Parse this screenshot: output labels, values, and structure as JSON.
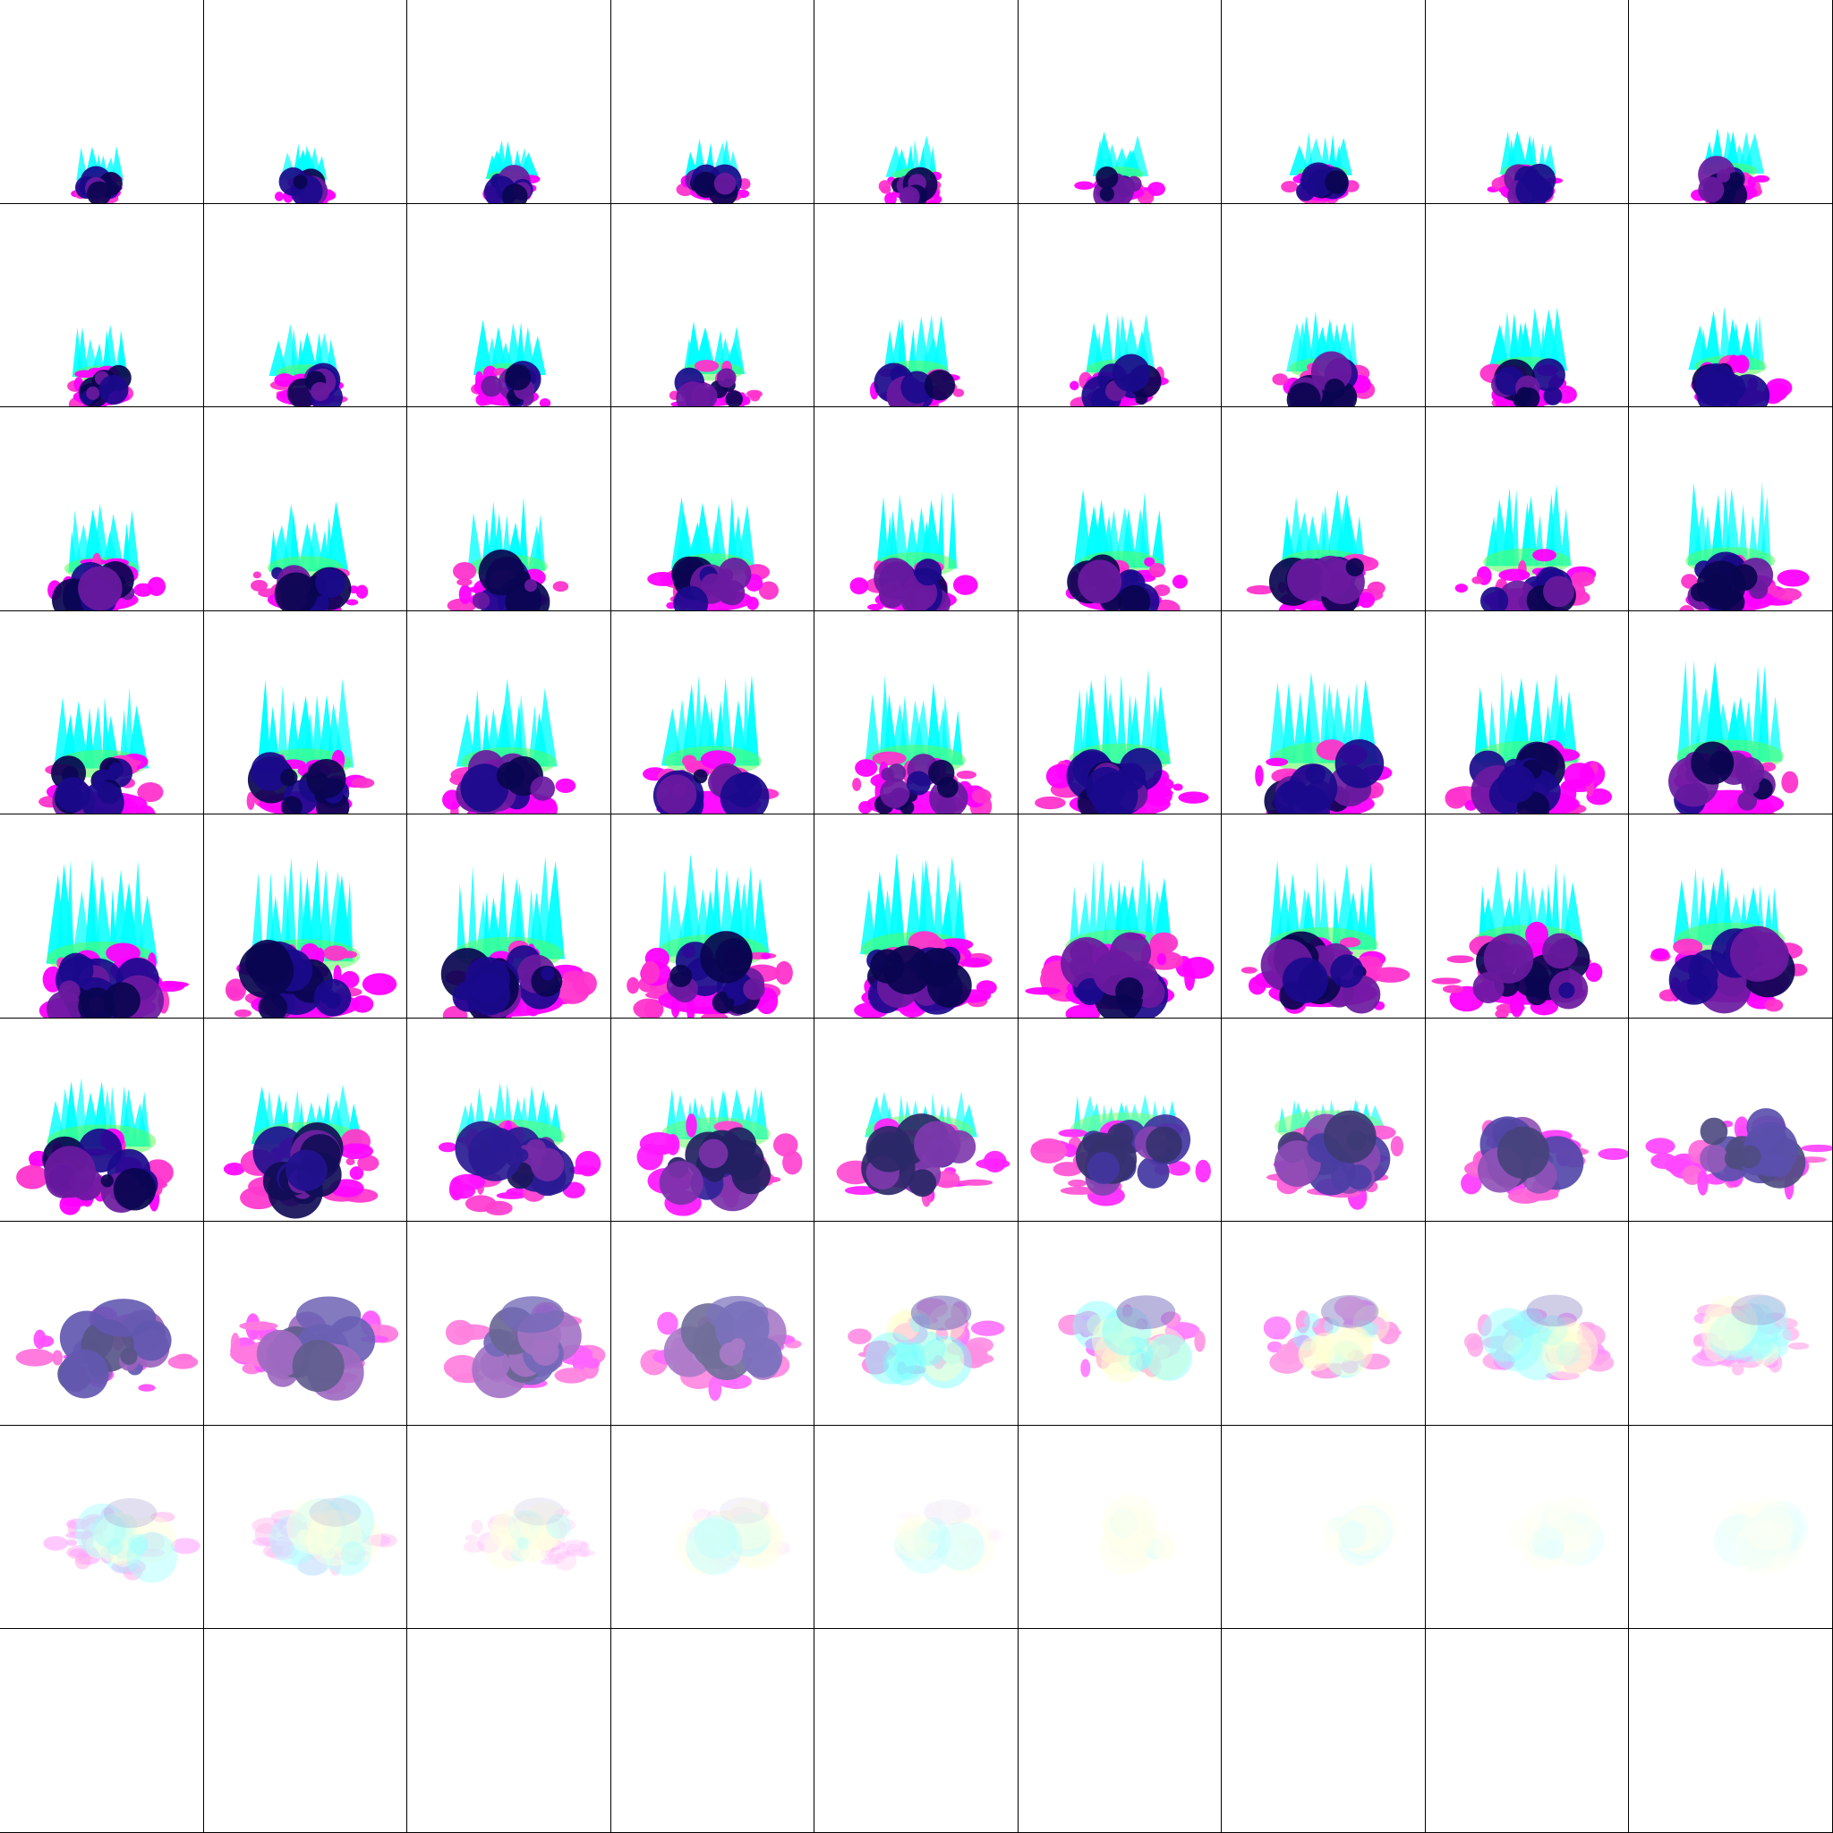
{
  "sheet": {
    "columns": 9,
    "rows": 9,
    "frame_count": 81,
    "background": "#ffffff",
    "grid_line_color": "#000000"
  },
  "palette": {
    "cyan": "#00ffff",
    "lime": "#55ff55",
    "magenta": "#ff00ff",
    "pink": "#ff33cc",
    "indigo": "#1a0a8c",
    "navy": "#0a0550",
    "purple": "#6a1aa0",
    "pale_yellow": "#ffff99"
  },
  "animation": {
    "subject": "smoke-explosion",
    "phases": [
      "ignition",
      "growth",
      "full-bloom",
      "dispersal",
      "fade-out",
      "empty"
    ]
  }
}
